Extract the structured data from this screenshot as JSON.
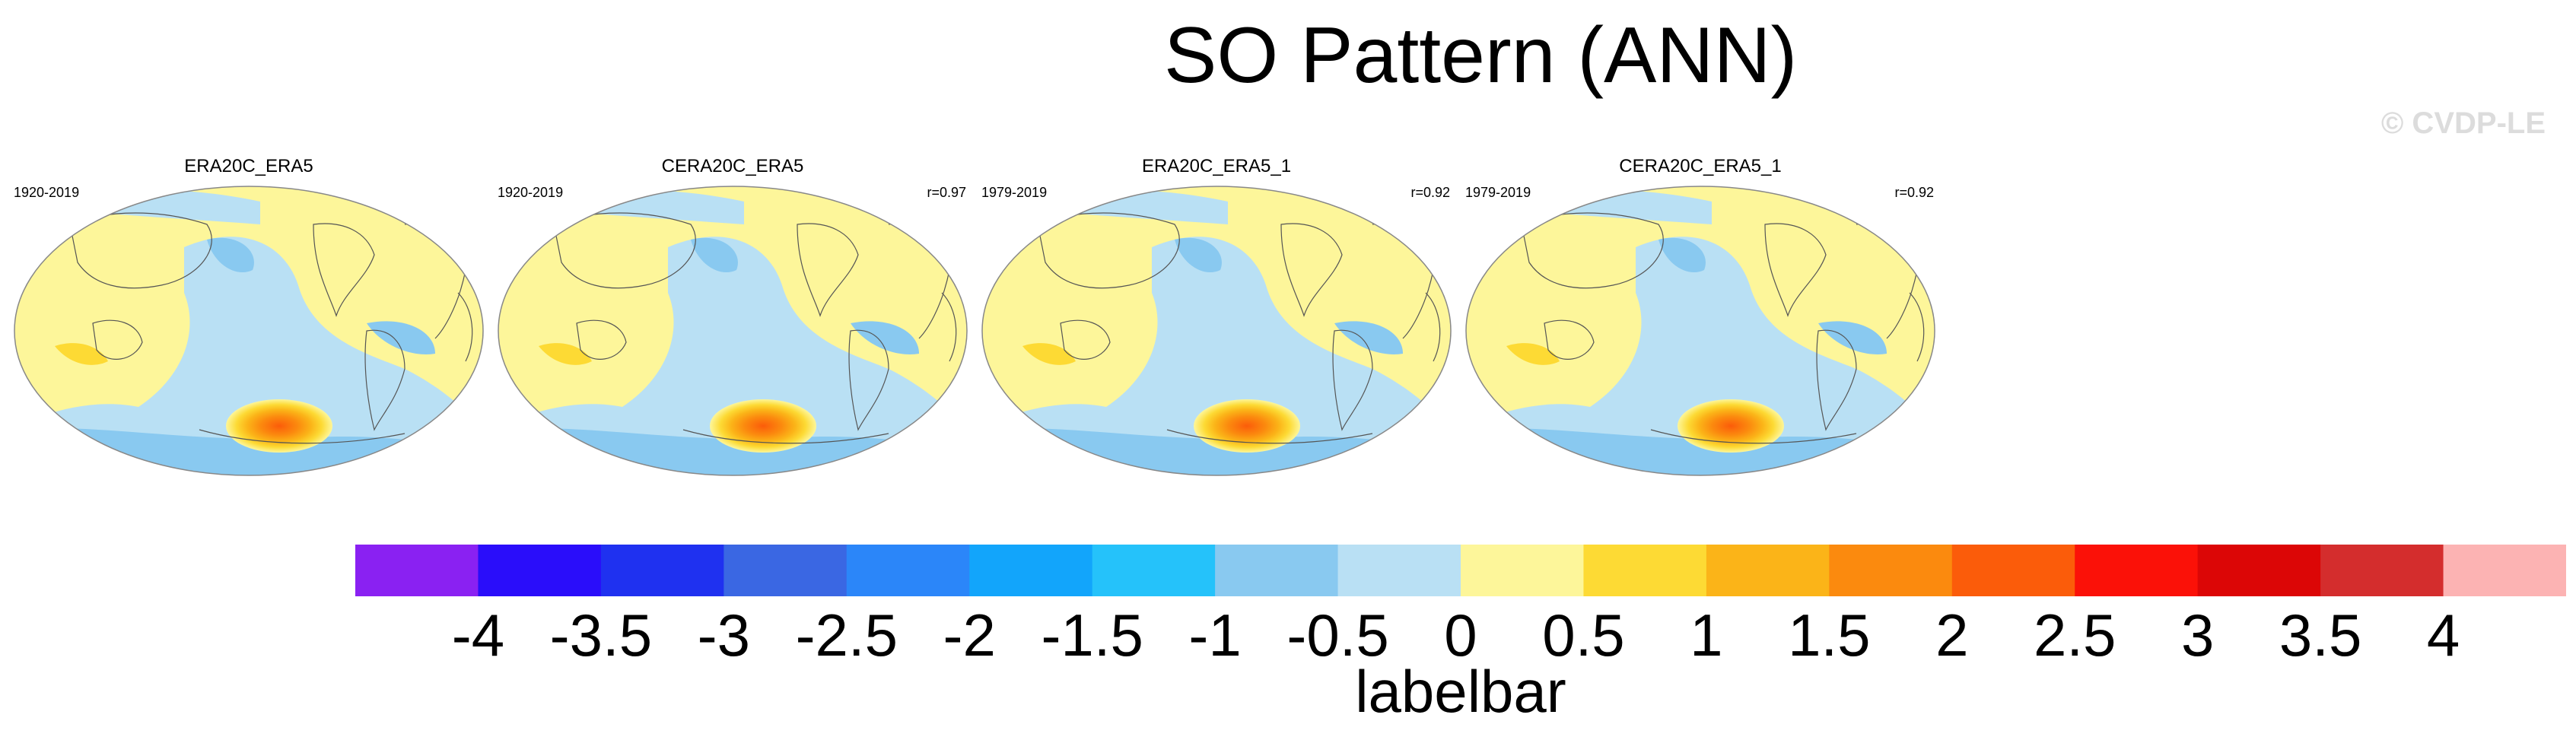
{
  "title": "SO Pattern (ANN)",
  "watermark": "© CVDP-LE",
  "panels": [
    {
      "name": "ERA20C_ERA5",
      "years": "1920-2019",
      "r": ""
    },
    {
      "name": "CERA20C_ERA5",
      "years": "1920-2019",
      "r": "r=0.97"
    },
    {
      "name": "ERA20C_ERA5_1",
      "years": "1979-2019",
      "r": "r=0.92"
    },
    {
      "name": "CERA20C_ERA5_1",
      "years": "1979-2019",
      "r": "r=0.92"
    }
  ],
  "labelbar": {
    "title": "labelbar",
    "tick_labels": [
      "-4",
      "-3.5",
      "-3",
      "-2.5",
      "-2",
      "-1.5",
      "-1",
      "-0.5",
      "0",
      "0.5",
      "1",
      "1.5",
      "2",
      "2.5",
      "3",
      "3.5",
      "4"
    ],
    "colors": [
      "#8a21f2",
      "#2a0dfa",
      "#1f31f0",
      "#3a67e3",
      "#2b86f9",
      "#12a5fb",
      "#25c2fa",
      "#89c9f0",
      "#b9e0f4",
      "#fdf69a",
      "#fdda34",
      "#fbb418",
      "#fb8a0e",
      "#fb5c0a",
      "#fb1108",
      "#dc0606",
      "#d42d2d",
      "#fcb3b3"
    ]
  }
}
